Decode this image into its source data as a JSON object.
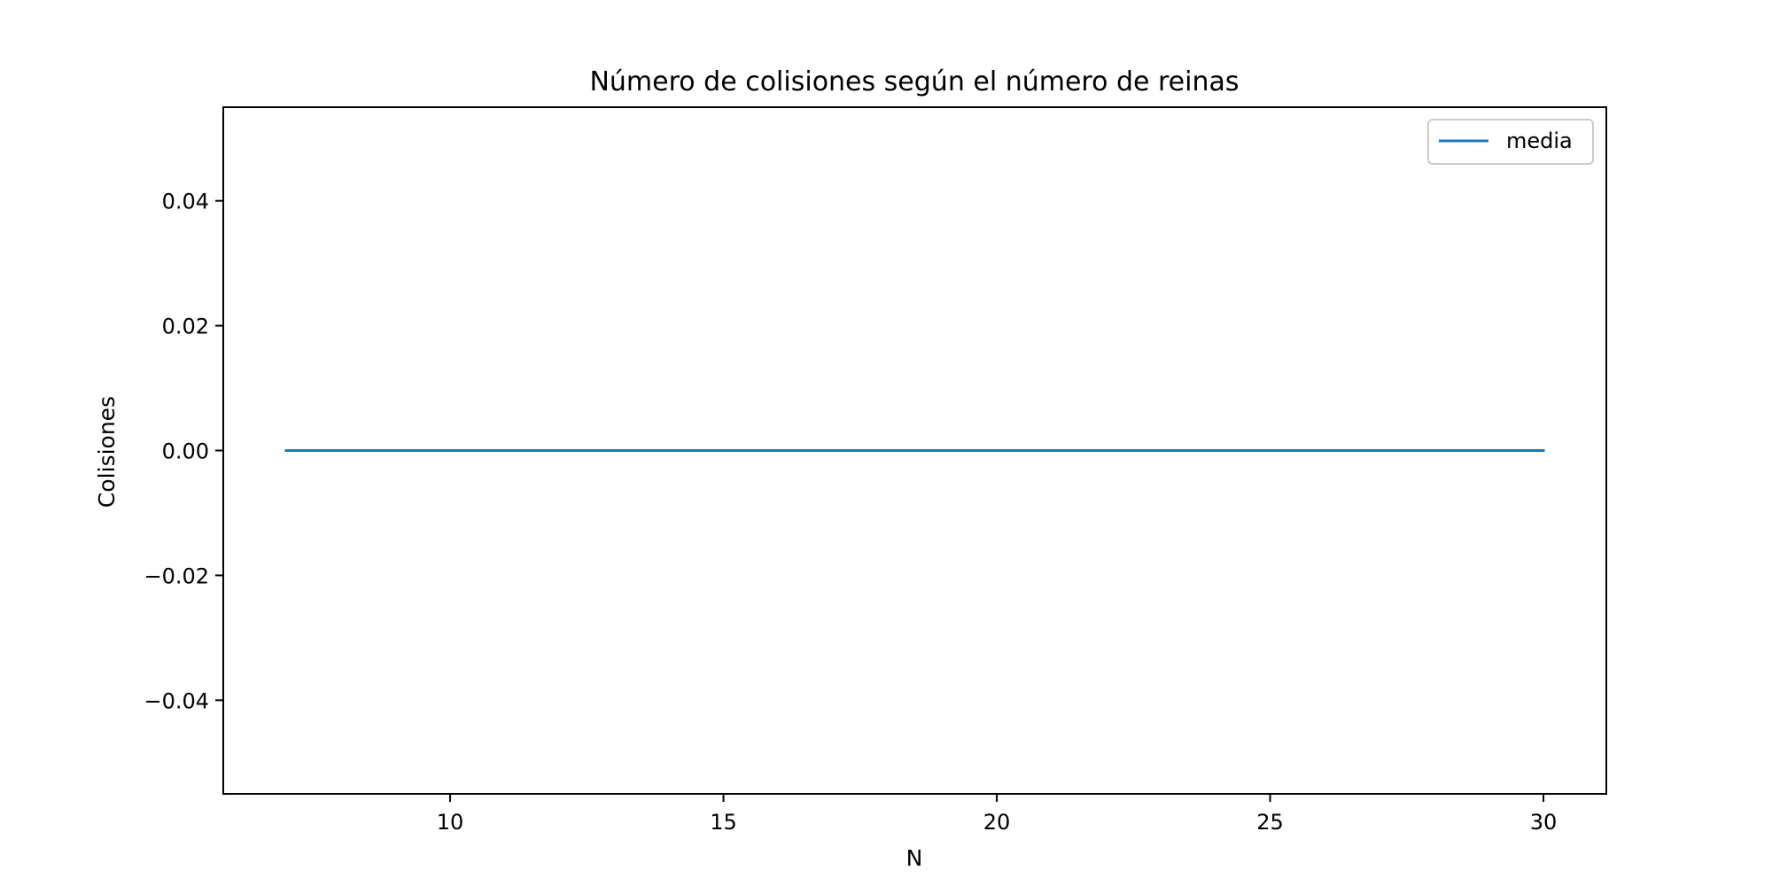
{
  "chart_data": {
    "type": "line",
    "title": "Número de colisiones según el número de reinas",
    "xlabel": "N",
    "ylabel": "Colisiones",
    "xlim": [
      5.85,
      31.15
    ],
    "ylim": [
      -0.055,
      0.055
    ],
    "xticks": [
      10,
      15,
      20,
      25,
      30
    ],
    "xtick_labels": [
      "10",
      "15",
      "20",
      "25",
      "30"
    ],
    "yticks": [
      -0.04,
      -0.02,
      0.0,
      0.02,
      0.04
    ],
    "ytick_labels": [
      "−0.04",
      "−0.02",
      "0.00",
      "0.02",
      "0.04"
    ],
    "grid": false,
    "legend_position": "top-right",
    "series": [
      {
        "name": "media",
        "color": "#1f77b4",
        "x": [
          7,
          8,
          9,
          10,
          11,
          12,
          13,
          14,
          15,
          16,
          17,
          18,
          19,
          20,
          21,
          22,
          23,
          24,
          25,
          26,
          27,
          28,
          29,
          30
        ],
        "y": [
          0,
          0,
          0,
          0,
          0,
          0,
          0,
          0,
          0,
          0,
          0,
          0,
          0,
          0,
          0,
          0,
          0,
          0,
          0,
          0,
          0,
          0,
          0,
          0
        ]
      }
    ]
  }
}
